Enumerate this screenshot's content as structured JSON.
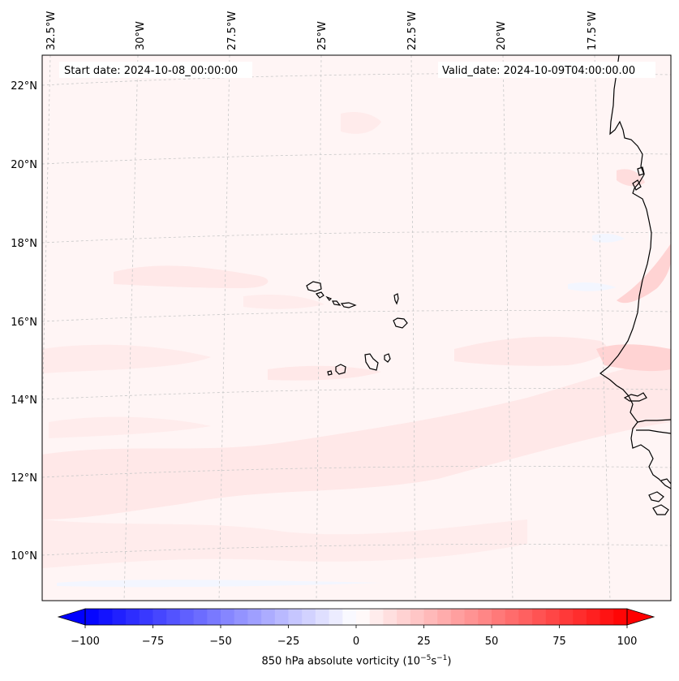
{
  "map": {
    "start_date_label": "Start date: 2024-10-08_00:00:00",
    "valid_date_label": "Valid_date: 2024-10-09T04:00:00.00",
    "longitude_ticks": [
      "32.5°W",
      "30°W",
      "27.5°W",
      "25°W",
      "22.5°W",
      "20°W",
      "17.5°W"
    ],
    "latitude_ticks": [
      "22°N",
      "20°N",
      "18°N",
      "16°N",
      "14°N",
      "12°N",
      "10°N"
    ],
    "extent": {
      "lon_min": -32.6,
      "lon_max": -15.9,
      "lat_min": 8.9,
      "lat_max": 22.7
    },
    "gridlines": true,
    "field_colors": {
      "background": "#fff5f5",
      "weak_positive": "#ffe8e8",
      "moderate_positive": "#ffd3d3",
      "weak_negative": "#f3f6ff"
    },
    "coastline_color": "#000000"
  },
  "colorbar": {
    "title_prefix": "850 hPa absolute vorticity (10",
    "title_exp1": "−5",
    "title_mid": "s",
    "title_exp2": "−1",
    "title_suffix": ")",
    "tick_labels": [
      "−100",
      "−75",
      "−50",
      "−25",
      "0",
      "25",
      "50",
      "75",
      "100"
    ],
    "range": [
      -100,
      100
    ],
    "colormap": "bwr",
    "extend": "both"
  }
}
